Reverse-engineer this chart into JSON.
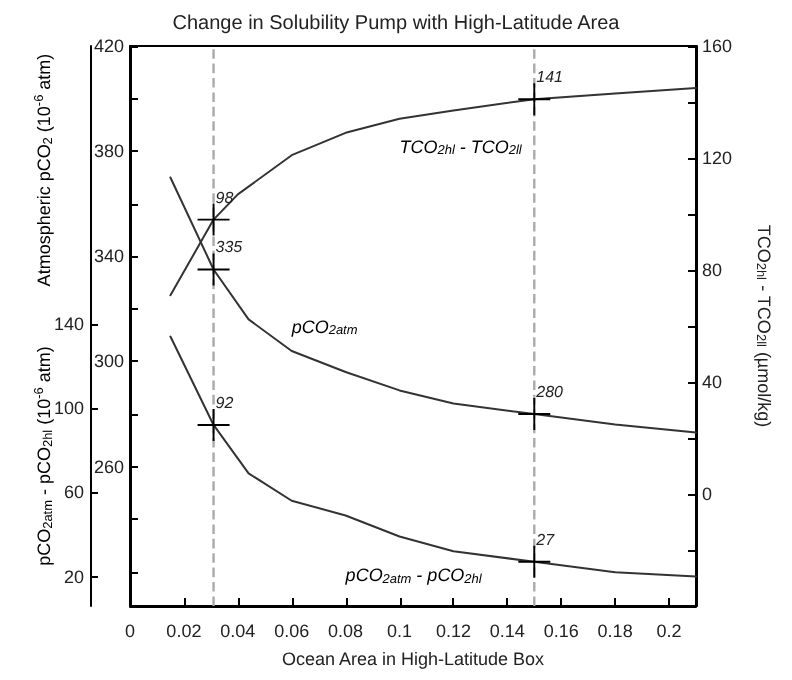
{
  "chart_data": {
    "type": "line",
    "title": "Change in Solubility Pump with High-Latitude Area",
    "xlabel": "Ocean Area in High-Latitude Box",
    "ylabel": "Atmospheric pCO$_{2}$ (10$^{-6}$ atm)",
    "y2label": "TCO$_{2hl}$ - TCO$_{2ll}$ (µmol/kg)",
    "y3label": "pCO$_{2atm}$ - pCO$_{2hl}$ (10$^{-6}$ atm)",
    "xlim": [
      0,
      0.21
    ],
    "xticks": [
      0,
      0.02,
      0.04,
      0.06,
      0.08,
      0.1,
      0.12,
      0.14,
      0.16,
      0.18,
      0.2
    ],
    "ylim": [
      207,
      420
    ],
    "yticks": [
      {
        "value": 220,
        "label": null
      },
      {
        "value": 240,
        "label": null
      },
      260,
      {
        "value": 280,
        "label": null
      },
      300,
      {
        "value": 320,
        "label": null
      },
      340,
      {
        "value": 360,
        "label": null
      },
      380,
      {
        "value": 400,
        "label": null
      },
      420
    ],
    "y2lim": [
      -40,
      160
    ],
    "y2ticks": [
      {
        "value": -20,
        "label": null
      },
      0,
      {
        "value": 20,
        "label": null
      },
      40,
      {
        "value": 60,
        "label": null
      },
      80,
      {
        "value": 100,
        "label": null
      },
      120,
      {
        "value": 140,
        "label": null
      },
      160
    ],
    "y3lim": [
      6,
      272
    ],
    "y3ticks": [
      20,
      60,
      100,
      140
    ],
    "series": [
      {
        "name": "TCO$_{2hl}$ - TCO$_{2ll}$",
        "axis": "y2",
        "color": "#333333",
        "x": [
          0.015,
          0.031,
          0.04,
          0.06,
          0.08,
          0.1,
          0.12,
          0.15,
          0.18,
          0.21
        ],
        "values": [
          71,
          98,
          107,
          121,
          129,
          134,
          137,
          141,
          143,
          145
        ],
        "value_labels": [
          null,
          "98",
          null,
          null,
          null,
          null,
          null,
          "141",
          null,
          null
        ]
      },
      {
        "name": "pCO$_{2atm}$",
        "axis": "y",
        "color": "#333333",
        "x": [
          0.015,
          0.031,
          0.044,
          0.06,
          0.08,
          0.1,
          0.12,
          0.15,
          0.18,
          0.21
        ],
        "values": [
          370,
          335,
          316,
          304,
          296,
          289,
          284,
          280,
          276,
          273
        ],
        "value_labels": [
          null,
          "335",
          null,
          null,
          null,
          null,
          null,
          "280",
          null,
          null
        ]
      },
      {
        "name": "pCO$_{2atm}$ - pCO$_{2hl}$",
        "axis": "y3",
        "color": "#333333",
        "x": [
          0.015,
          0.031,
          0.044,
          0.06,
          0.08,
          0.1,
          0.12,
          0.15,
          0.18,
          0.21
        ],
        "values": [
          134,
          92,
          69,
          56,
          49,
          39,
          32,
          27,
          22,
          20
        ],
        "value_labels": [
          null,
          "92",
          null,
          null,
          null,
          null,
          null,
          "27",
          null,
          null
        ]
      }
    ],
    "ref_lines": [
      {
        "axis": "x",
        "value": 0.031,
        "color": "#aaaaaa",
        "line_style": "dashed"
      },
      {
        "axis": "x",
        "value": 0.15,
        "color": "#aaaaaa",
        "line_style": "dashed"
      }
    ],
    "marker": "none",
    "line_style": "solid"
  }
}
